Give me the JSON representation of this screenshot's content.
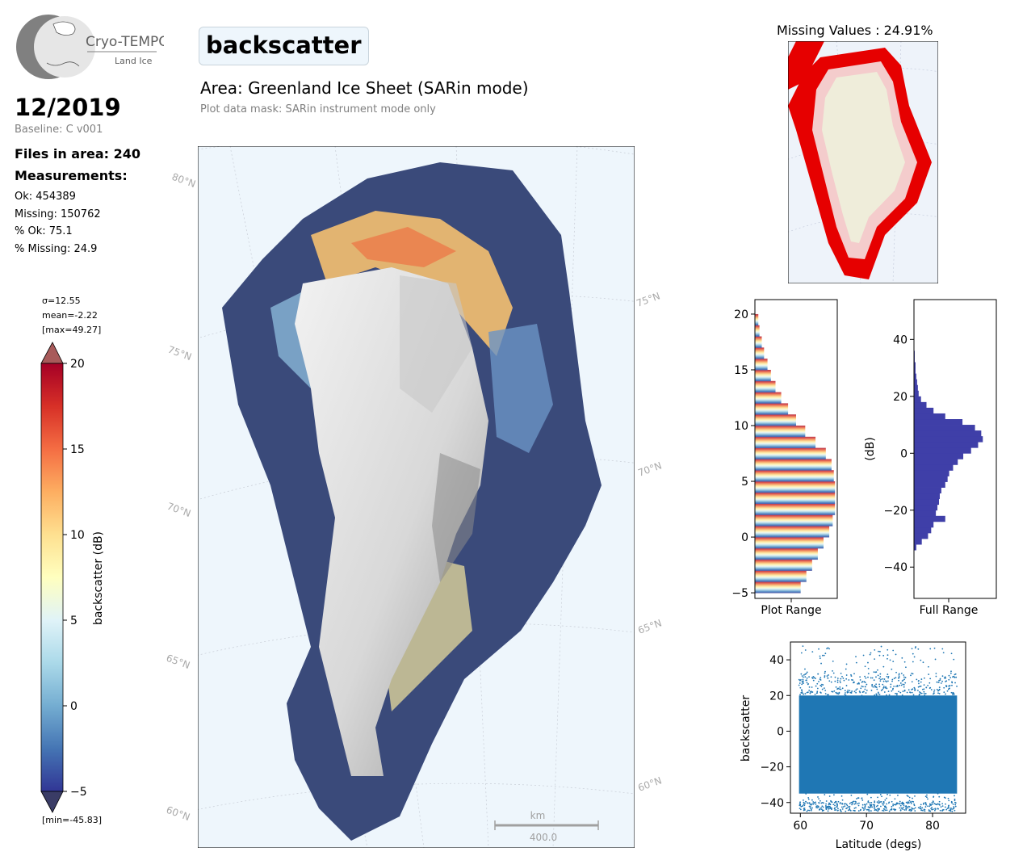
{
  "logo": {
    "title": "Cryo-TEMPO",
    "subtitle": "Land Ice"
  },
  "header": {
    "date": "12/2019",
    "baseline": "Baseline: C v001",
    "files_in_area": "Files in area: 240",
    "measurements_label": "Measurements:",
    "ok": "Ok: 454389",
    "missing": "Missing: 150762",
    "pct_ok": "% Ok: 75.1",
    "pct_missing": "% Missing: 24.9"
  },
  "parameter": "backscatter",
  "area_title": "Area: Greenland Ice Sheet (SARin mode)",
  "mask_note": "Plot data mask: SARin instrument mode only",
  "colorbar": {
    "sigma": "σ=12.55",
    "mean": "mean=-2.22",
    "max": "[max=49.27]",
    "min": "[min=-45.83]",
    "label": "backscatter (dB)",
    "range": [
      -5,
      20
    ],
    "ticks": [
      "20",
      "15",
      "10",
      "5",
      "0",
      "−5"
    ],
    "extend": "both",
    "colormap": "RdYlBu_r",
    "colors": [
      "#313695",
      "#4575b4",
      "#74add1",
      "#abd9e9",
      "#e0f3f8",
      "#ffffbf",
      "#fee090",
      "#fdae61",
      "#f46d43",
      "#d73027",
      "#a50026"
    ]
  },
  "main_map": {
    "lat_labels_left": [
      "80°N",
      "75°N",
      "70°N",
      "65°N",
      "60°N"
    ],
    "lat_labels_right": [
      "75°N",
      "70°N",
      "65°N",
      "60°N"
    ],
    "scalebar_unit": "km",
    "scalebar_value": "400.0",
    "ocean_color": "#eef6fc"
  },
  "missing_map": {
    "title": "Missing Values : 24.91%",
    "missing_color": "#e60000",
    "land_color": "#efedda"
  },
  "chart_data": [
    {
      "type": "bar",
      "title": "",
      "xlabel": "Plot Range",
      "ylabel": "",
      "orientation": "horizontal",
      "ylim": [
        -5.5,
        21.3
      ],
      "y_ticks": [
        "20",
        "15",
        "10",
        "5",
        "0",
        "−5"
      ],
      "bins": [
        -5,
        -4,
        -3,
        -2,
        -1,
        0,
        1,
        2,
        3,
        4,
        5,
        6,
        7,
        8,
        9,
        10,
        11,
        12,
        13,
        14,
        15,
        16,
        17,
        18,
        19
      ],
      "relative_counts": [
        0.4,
        0.45,
        0.5,
        0.55,
        0.6,
        0.65,
        0.68,
        0.7,
        0.7,
        0.7,
        0.69,
        0.67,
        0.62,
        0.53,
        0.44,
        0.36,
        0.29,
        0.23,
        0.18,
        0.14,
        0.11,
        0.08,
        0.06,
        0.04,
        0.03
      ]
    },
    {
      "type": "bar",
      "title": "",
      "xlabel": "Full Range",
      "ylabel": "(dB)",
      "orientation": "horizontal",
      "ylim": [
        -51,
        54
      ],
      "y_ticks": [
        "40",
        "20",
        "0",
        "−20",
        "−40"
      ],
      "color": "#3f3fa8",
      "bins": [
        -34,
        -32,
        -30,
        -28,
        -26,
        -24,
        -22,
        -20,
        -18,
        -16,
        -14,
        -12,
        -10,
        -8,
        -6,
        -4,
        -2,
        0,
        2,
        4,
        6,
        8,
        10,
        12,
        14,
        16,
        18,
        20,
        22,
        24,
        26,
        28,
        30,
        32,
        34
      ],
      "relative_counts": [
        0.03,
        0.1,
        0.18,
        0.22,
        0.25,
        0.4,
        0.28,
        0.3,
        0.32,
        0.33,
        0.35,
        0.4,
        0.43,
        0.45,
        0.5,
        0.56,
        0.63,
        0.73,
        0.82,
        0.88,
        0.86,
        0.78,
        0.62,
        0.4,
        0.25,
        0.16,
        0.09,
        0.06,
        0.05,
        0.04,
        0.03,
        0.02,
        0.02,
        0.01,
        0.01
      ]
    },
    {
      "type": "scatter",
      "title": "",
      "xlabel": "Latitude (degs)",
      "ylabel": "backscatter",
      "xlim": [
        58.5,
        85
      ],
      "ylim": [
        -46,
        50
      ],
      "x_ticks": [
        "60",
        "70",
        "80"
      ],
      "y_ticks": [
        "40",
        "20",
        "0",
        "−20",
        "−40"
      ],
      "color": "#1f77b4",
      "x_range": [
        59.8,
        83.7
      ],
      "y_bulk_range": [
        -35,
        20
      ],
      "y_outlier_range": [
        -45,
        48
      ]
    }
  ]
}
